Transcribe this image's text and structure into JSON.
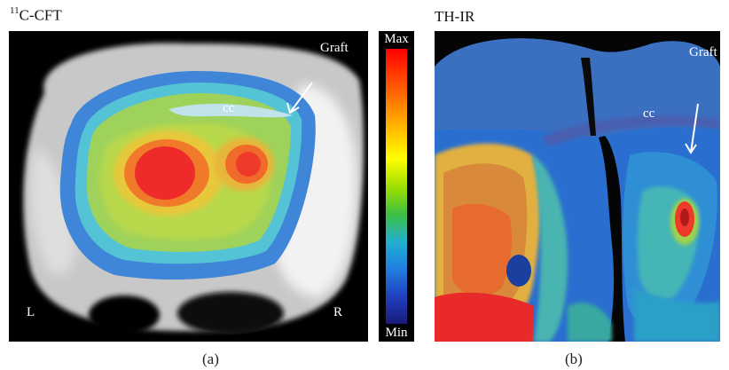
{
  "panel_a": {
    "title_superscript": "11",
    "title_main": "C-CFT",
    "overlay_graft": "Graft",
    "overlay_cc": "cc",
    "overlay_left": "L",
    "overlay_right": "R",
    "colorbar_max": "Max",
    "colorbar_min": "Min",
    "sublabel": "(a)"
  },
  "panel_b": {
    "title": "TH-IR",
    "overlay_graft": "Graft",
    "overlay_cc": "cc",
    "sublabel": "(b)"
  },
  "colors": {
    "max": "#ff0000",
    "min": "#1a1a7a",
    "background": "#000000"
  }
}
